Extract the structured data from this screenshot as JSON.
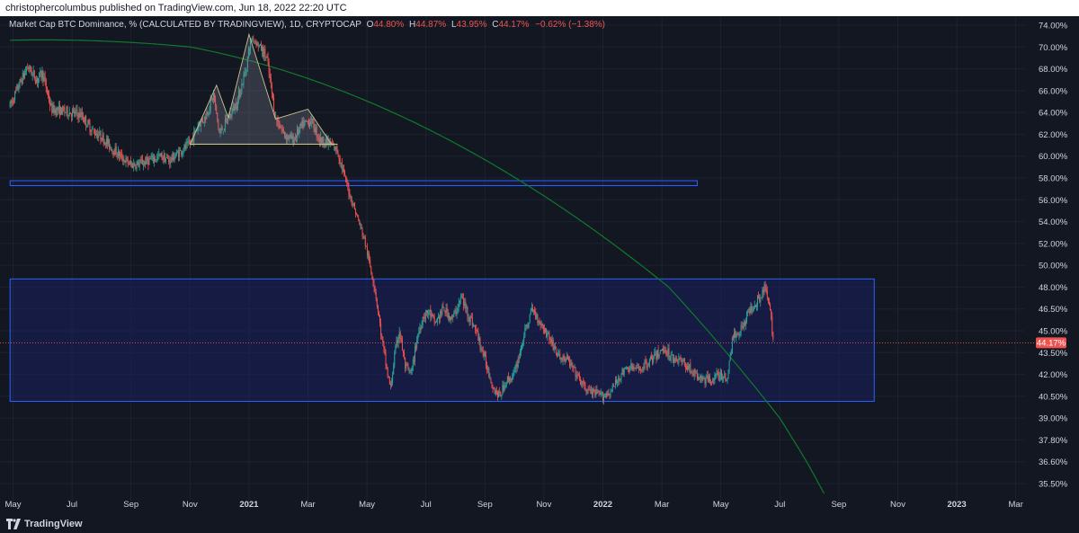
{
  "header": {
    "published": "christophercolumbus published on TradingView.com, Jun 18, 2022 22:20 UTC"
  },
  "footer": {
    "brand": "TradingView"
  },
  "chart_data": {
    "type": "candlestick",
    "legend": {
      "symbol": "Market Cap BTC Dominance, % (CALCULATED BY TRADINGVIEW), 1D, CRYPTOCAP",
      "o_label": "O",
      "o_value": "44.80%",
      "h_label": "H",
      "h_value": "44.87%",
      "l_label": "L",
      "l_value": "43.95%",
      "c_label": "C",
      "c_value": "44.17%",
      "change": "−0.62% (−1.38%)"
    },
    "last_price_label": "44.17%",
    "last_price": 44.17,
    "y_ticks": [
      {
        "label": "74.00%",
        "v": 74.0
      },
      {
        "label": "70.00%",
        "v": 70.0
      },
      {
        "label": "68.00%",
        "v": 68.0
      },
      {
        "label": "66.00%",
        "v": 66.0
      },
      {
        "label": "64.00%",
        "v": 64.0
      },
      {
        "label": "62.00%",
        "v": 62.0
      },
      {
        "label": "60.00%",
        "v": 60.0
      },
      {
        "label": "58.00%",
        "v": 58.0
      },
      {
        "label": "56.00%",
        "v": 56.0
      },
      {
        "label": "54.00%",
        "v": 54.0
      },
      {
        "label": "52.00%",
        "v": 52.0
      },
      {
        "label": "50.00%",
        "v": 50.0
      },
      {
        "label": "48.00%",
        "v": 48.0
      },
      {
        "label": "46.50%",
        "v": 46.5
      },
      {
        "label": "45.00%",
        "v": 45.0
      },
      {
        "label": "43.50%",
        "v": 43.5
      },
      {
        "label": "42.00%",
        "v": 42.0
      },
      {
        "label": "40.50%",
        "v": 40.5
      },
      {
        "label": "39.00%",
        "v": 39.0
      },
      {
        "label": "37.80%",
        "v": 37.8
      },
      {
        "label": "36.60%",
        "v": 36.6
      },
      {
        "label": "35.50%",
        "v": 35.5
      }
    ],
    "x_ticks": [
      {
        "label": "May",
        "t": 0
      },
      {
        "label": "Jul",
        "t": 2
      },
      {
        "label": "Sep",
        "t": 4
      },
      {
        "label": "Nov",
        "t": 6
      },
      {
        "label": "2021",
        "t": 8,
        "bold": true
      },
      {
        "label": "Mar",
        "t": 10
      },
      {
        "label": "May",
        "t": 12
      },
      {
        "label": "Jul",
        "t": 14
      },
      {
        "label": "Sep",
        "t": 16
      },
      {
        "label": "Nov",
        "t": 18
      },
      {
        "label": "2022",
        "t": 20,
        "bold": true
      },
      {
        "label": "Mar",
        "t": 22
      },
      {
        "label": "May",
        "t": 24
      },
      {
        "label": "Jul",
        "t": 26
      },
      {
        "label": "Sep",
        "t": 28
      },
      {
        "label": "Nov",
        "t": 30
      },
      {
        "label": "2023",
        "t": 32,
        "bold": true
      },
      {
        "label": "Mar",
        "t": 34
      }
    ],
    "path": [
      [
        -0.1,
        64.6
      ],
      [
        0.2,
        66.5
      ],
      [
        0.5,
        68.2
      ],
      [
        0.8,
        67.0
      ],
      [
        1.0,
        67.6
      ],
      [
        1.3,
        64.3
      ],
      [
        1.8,
        64.1
      ],
      [
        2.3,
        63.8
      ],
      [
        2.7,
        62.3
      ],
      [
        3.0,
        61.8
      ],
      [
        3.4,
        60.6
      ],
      [
        3.8,
        59.6
      ],
      [
        4.0,
        59.2
      ],
      [
        4.3,
        59.3
      ],
      [
        4.7,
        59.7
      ],
      [
        5.0,
        60.0
      ],
      [
        5.3,
        59.6
      ],
      [
        5.7,
        60.5
      ],
      [
        6.0,
        61.1
      ],
      [
        6.3,
        63.0
      ],
      [
        6.5,
        63.5
      ],
      [
        6.8,
        65.6
      ],
      [
        7.0,
        62.0
      ],
      [
        7.3,
        63.5
      ],
      [
        7.6,
        65.0
      ],
      [
        7.9,
        68.0
      ],
      [
        8.1,
        71.7
      ],
      [
        8.3,
        70.5
      ],
      [
        8.6,
        69.0
      ],
      [
        8.9,
        63.5
      ],
      [
        9.2,
        62.0
      ],
      [
        9.5,
        61.5
      ],
      [
        9.8,
        62.8
      ],
      [
        10.1,
        63.3
      ],
      [
        10.4,
        61.5
      ],
      [
        10.7,
        61.2
      ],
      [
        11.0,
        60.5
      ],
      [
        11.3,
        57.5
      ],
      [
        11.6,
        55.0
      ],
      [
        11.9,
        52.5
      ],
      [
        12.1,
        50.0
      ],
      [
        12.3,
        47.5
      ],
      [
        12.5,
        44.5
      ],
      [
        12.7,
        42.0
      ],
      [
        12.8,
        41.0
      ],
      [
        12.95,
        43.5
      ],
      [
        13.1,
        45.0
      ],
      [
        13.3,
        42.5
      ],
      [
        13.5,
        42.0
      ],
      [
        13.7,
        44.5
      ],
      [
        13.9,
        46.0
      ],
      [
        14.1,
        46.3
      ],
      [
        14.3,
        45.5
      ],
      [
        14.6,
        46.5
      ],
      [
        14.9,
        45.8
      ],
      [
        15.2,
        47.3
      ],
      [
        15.4,
        46.3
      ],
      [
        15.7,
        45.0
      ],
      [
        16.0,
        43.0
      ],
      [
        16.3,
        41.0
      ],
      [
        16.5,
        40.5
      ],
      [
        16.7,
        41.5
      ],
      [
        17.0,
        42.0
      ],
      [
        17.3,
        44.5
      ],
      [
        17.6,
        46.5
      ],
      [
        17.9,
        45.5
      ],
      [
        18.2,
        44.5
      ],
      [
        18.5,
        43.2
      ],
      [
        18.8,
        43.0
      ],
      [
        19.1,
        42.0
      ],
      [
        19.4,
        41.0
      ],
      [
        19.7,
        40.7
      ],
      [
        20.0,
        40.5
      ],
      [
        20.3,
        40.9
      ],
      [
        20.6,
        42.0
      ],
      [
        20.9,
        42.5
      ],
      [
        21.2,
        42.3
      ],
      [
        21.5,
        42.8
      ],
      [
        21.8,
        43.3
      ],
      [
        22.1,
        43.8
      ],
      [
        22.3,
        43.2
      ],
      [
        22.6,
        43.0
      ],
      [
        22.9,
        42.5
      ],
      [
        23.2,
        41.8
      ],
      [
        23.5,
        41.6
      ],
      [
        23.8,
        41.8
      ],
      [
        24.0,
        42.0
      ],
      [
        24.2,
        41.6
      ],
      [
        24.4,
        44.5
      ],
      [
        24.7,
        45.2
      ],
      [
        25.0,
        46.5
      ],
      [
        25.3,
        47.3
      ],
      [
        25.5,
        48.0
      ],
      [
        25.65,
        46.5
      ],
      [
        25.8,
        44.17
      ]
    ],
    "zones": [
      {
        "t0": -0.1,
        "t1": 23.2,
        "v0": 57.75,
        "v1": 57.3
      },
      {
        "t0": -0.1,
        "t1": 29.2,
        "v0": 48.75,
        "v1": 40.15
      }
    ],
    "head_and_shoulders": [
      [
        6.0,
        61.1
      ],
      [
        6.9,
        66.5
      ],
      [
        7.3,
        63.5
      ],
      [
        8.0,
        72.3
      ],
      [
        8.9,
        63.4
      ],
      [
        10.0,
        64.3
      ],
      [
        10.8,
        61.1
      ],
      [
        11.0,
        61.1
      ]
    ],
    "neckline": [
      [
        6.0,
        61.1
      ],
      [
        11.0,
        61.1
      ]
    ],
    "arc": {
      "t_peak": 1.0,
      "v_peak": 71.3,
      "t_end": 27.5,
      "v_end": 35.0
    },
    "colors": {
      "up": "#26a69a",
      "down": "#ef5350",
      "background": "#131722",
      "zone_border": "#2962ff",
      "zone_fill": "#1a237e",
      "arc": "#0f7a2a",
      "pattern_stroke": "#c8c58a",
      "label_text": "#d1d4dc",
      "last_price_bg": "#ef5350"
    }
  }
}
